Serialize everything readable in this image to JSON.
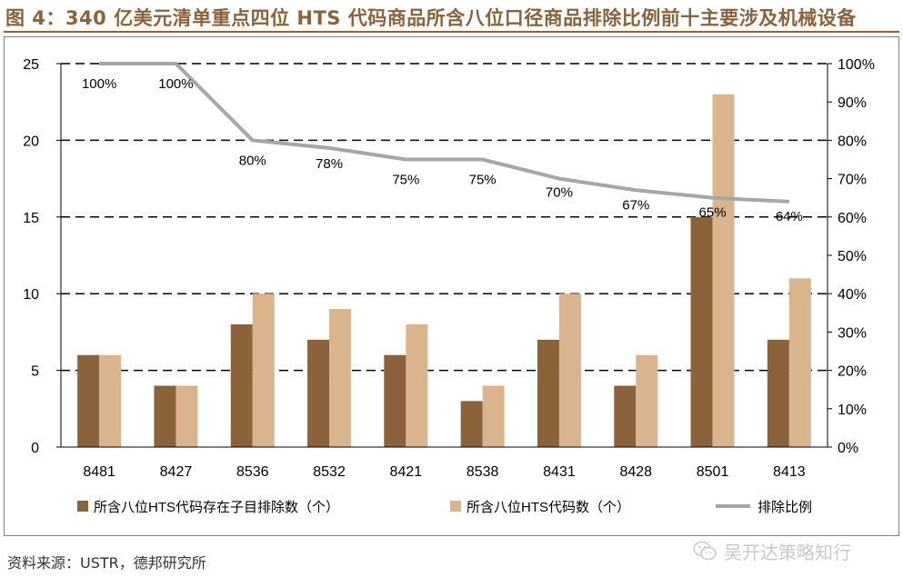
{
  "figure": {
    "title": "图 4：340 亿美元清单重点四位 HTS 代码商品所含八位口径商品排除比例前十主要涉及机械设备",
    "source": "资料来源：USTR，德邦研究所",
    "watermark": "吴开达策略知行",
    "watermark_icon": "wechat-icon"
  },
  "colors": {
    "bar_excluded": "#8B6239",
    "bar_total": "#D9B48C",
    "line": "#A6A6A6",
    "title": "#8C6239",
    "grid": "#000000"
  },
  "chart_data": {
    "type": "bar",
    "categories": [
      "8481",
      "8427",
      "8536",
      "8532",
      "8421",
      "8538",
      "8431",
      "8428",
      "8501",
      "8413"
    ],
    "series": [
      {
        "name": "所含八位HTS代码存在子目排除数（个）",
        "type": "bar",
        "axis": "left",
        "values": [
          6,
          4,
          8,
          7,
          6,
          3,
          7,
          4,
          15,
          7
        ]
      },
      {
        "name": "所含八位HTS代码数（个）",
        "type": "bar",
        "axis": "left",
        "values": [
          6,
          4,
          10,
          9,
          8,
          4,
          10,
          6,
          23,
          11
        ]
      },
      {
        "name": "排除比例",
        "type": "line",
        "axis": "right",
        "values": [
          100,
          100,
          80,
          78,
          75,
          75,
          70,
          67,
          65,
          64
        ],
        "labels": [
          "100%",
          "100%",
          "80%",
          "78%",
          "75%",
          "75%",
          "70%",
          "67%",
          "65%",
          "64%"
        ]
      }
    ],
    "y_left": {
      "min": 0,
      "max": 25,
      "ticks": [
        0,
        5,
        10,
        15,
        20,
        25
      ]
    },
    "y_right": {
      "min": 0,
      "max": 100,
      "tick_values": [
        0,
        10,
        20,
        30,
        40,
        50,
        60,
        70,
        80,
        90,
        100
      ],
      "tick_labels": [
        "0%",
        "10%",
        "20%",
        "30%",
        "40%",
        "50%",
        "60%",
        "70%",
        "80%",
        "90%",
        "100%"
      ]
    },
    "grid": "dashed horizontal",
    "legend_position": "bottom",
    "xlabel": "",
    "ylabel": ""
  }
}
